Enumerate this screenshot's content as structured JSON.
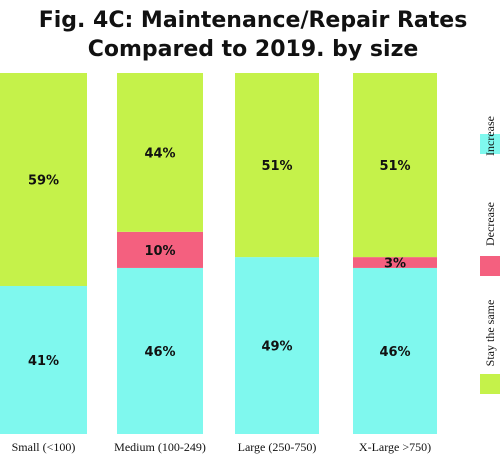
{
  "chart_data": {
    "type": "bar",
    "stacked": true,
    "title_lines": [
      "Fig. 4C: Maintenance/Repair Rates",
      "Compared to 2019. by size"
    ],
    "categories": [
      "Small (<100)",
      "Medium (100-249)",
      "Large (250-750)",
      "X-Large >750)"
    ],
    "series": [
      {
        "name": "Increase",
        "color": "#7ff8ee",
        "values": [
          41,
          46,
          49,
          46
        ],
        "labels": [
          "41%",
          "46%",
          "49%",
          "46%"
        ]
      },
      {
        "name": "Decrease",
        "color": "#f4607f",
        "values": [
          0,
          10,
          0,
          3
        ],
        "labels": [
          "",
          "10%",
          "",
          "3%"
        ]
      },
      {
        "name": "Stay the same",
        "color": "#c5f24a",
        "values": [
          59,
          44,
          51,
          51
        ],
        "labels": [
          "59%",
          "44%",
          "51%",
          "51%"
        ]
      }
    ],
    "ylim": [
      0,
      100
    ],
    "legend_position": "right",
    "grid": false
  }
}
